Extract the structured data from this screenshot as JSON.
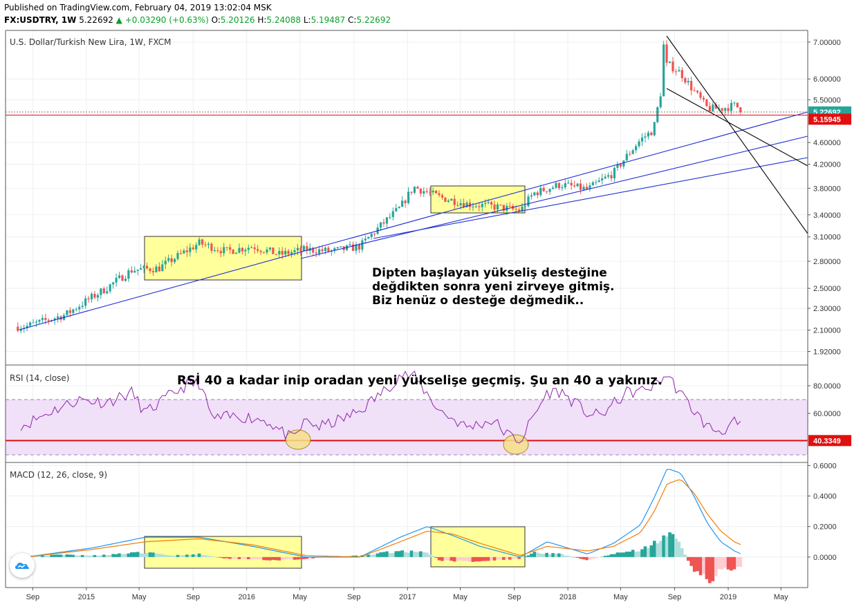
{
  "header": {
    "published": "Published on TradingView.com, February 04, 2019 13:02:04 MSK",
    "symbol": "FX:USDTRY, 1W",
    "last": "5.22692",
    "change": "▲ +0.03290 (+0.63%)",
    "o_label": "O:",
    "o": "5.20126",
    "h_label": "H:",
    "h": "5.24088",
    "l_label": "L:",
    "l": "5.19487",
    "c_label": "C:",
    "c": "5.22692"
  },
  "panes": {
    "price_title": "U.S. Dollar/Turkish New Lira, 1W, FXCM",
    "rsi_title": "RSI (14, close)",
    "macd_title": "MACD (12, 26, close, 9)"
  },
  "annotations": {
    "price_line1": "Dipten başlayan yükseliş desteğine",
    "price_line2": "değdikten sonra yeni zirveye gitmiş.",
    "price_line3": "Biz henüz o desteğe değmedik..",
    "rsi_note": "RSİ 40 a kadar inip oradan yeni yükselişe geçmiş. Şu an 40 a yakınız."
  },
  "colors": {
    "up": "#26a69a",
    "down": "#ef5350",
    "trendline": "#1f2fd6",
    "rsi_line": "#8e24aa",
    "rsi_band": "#f0e0f8",
    "rsi_level": "#e01010",
    "macd_line": "#2196f3",
    "signal_line": "#f57c00",
    "hist_up_strong": "#26a69a",
    "hist_up_weak": "#b2dfdb",
    "hist_down_strong": "#ef5350",
    "hist_down_weak": "#ffcdd2",
    "highlight_box": "#ffff9c",
    "last_price_tag": "#26a69a",
    "level_tag": "#e01010"
  },
  "chart_data": [
    {
      "type": "candlestick",
      "title": "U.S. Dollar/Turkish New Lira, 1W, FXCM",
      "x_ticks": [
        "Sep",
        "2015",
        "May",
        "Sep",
        "2016",
        "May",
        "Sep",
        "2017",
        "May",
        "Sep",
        "2018",
        "May",
        "Sep",
        "2019",
        "May"
      ],
      "y_ticks": [
        7.0,
        6.0,
        5.5,
        4.6,
        4.2,
        3.8,
        3.4,
        3.1,
        2.8,
        2.5,
        2.3,
        2.1,
        1.92
      ],
      "y_tick_labels": [
        "7.00000",
        "6.00000",
        "5.50000",
        "4.60000",
        "4.20000",
        "3.80000",
        "3.40000",
        "3.10000",
        "2.80000",
        "2.50000",
        "2.30000",
        "2.10000",
        "1.92000"
      ],
      "ylim": [
        1.82,
        7.35
      ],
      "scale": "log",
      "last_price_label": "5.22692",
      "horizontal_level_label": "5.15945",
      "trend": [
        [
          "2014-08",
          2.13
        ],
        [
          "2014-11",
          2.24
        ],
        [
          "2015-02",
          2.5
        ],
        [
          "2015-04",
          2.7
        ],
        [
          "2015-06",
          2.72
        ],
        [
          "2015-09",
          3.02
        ],
        [
          "2015-11",
          2.92
        ],
        [
          "2016-01",
          2.98
        ],
        [
          "2016-03",
          2.88
        ],
        [
          "2016-05",
          2.94
        ],
        [
          "2016-07",
          2.92
        ],
        [
          "2016-09",
          2.98
        ],
        [
          "2016-12",
          3.5
        ],
        [
          "2017-01",
          3.82
        ],
        [
          "2017-03",
          3.66
        ],
        [
          "2017-05",
          3.56
        ],
        [
          "2017-07",
          3.52
        ],
        [
          "2017-09",
          3.46
        ],
        [
          "2017-10",
          3.72
        ],
        [
          "2017-12",
          3.86
        ],
        [
          "2018-02",
          3.78
        ],
        [
          "2018-04",
          4.05
        ],
        [
          "2018-06",
          4.65
        ],
        [
          "2018-07",
          4.85
        ],
        [
          "2018-08",
          6.4
        ],
        [
          "2018-09",
          6.15
        ],
        [
          "2018-10",
          5.7
        ],
        [
          "2018-11",
          5.3
        ],
        [
          "2018-12",
          5.3
        ],
        [
          "2019-01",
          5.37
        ],
        [
          "2019-02",
          5.22
        ]
      ]
    },
    {
      "type": "line",
      "title": "RSI (14, close)",
      "y_ticks": [
        80,
        60
      ],
      "y_tick_labels": [
        "80.0000",
        "60.0000"
      ],
      "ylim": [
        25,
        95
      ],
      "band": [
        30,
        70
      ],
      "level": 40.3349,
      "level_label": "40.3349",
      "values": [
        [
          "2014-08",
          52
        ],
        [
          "2014-10",
          62
        ],
        [
          "2014-12",
          70
        ],
        [
          "2015-02",
          68
        ],
        [
          "2015-04",
          75
        ],
        [
          "2015-05",
          60
        ],
        [
          "2015-07",
          74
        ],
        [
          "2015-08",
          80
        ],
        [
          "2015-09",
          82
        ],
        [
          "2015-10",
          56
        ],
        [
          "2015-12",
          58
        ],
        [
          "2016-02",
          55
        ],
        [
          "2016-03",
          48
        ],
        [
          "2016-04",
          41
        ],
        [
          "2016-05",
          55
        ],
        [
          "2016-06",
          50
        ],
        [
          "2016-08",
          57
        ],
        [
          "2016-09",
          62
        ],
        [
          "2016-11",
          78
        ],
        [
          "2016-12",
          88
        ],
        [
          "2017-01",
          87
        ],
        [
          "2017-03",
          62
        ],
        [
          "2017-05",
          50
        ],
        [
          "2017-07",
          55
        ],
        [
          "2017-08",
          45
        ],
        [
          "2017-09",
          40
        ],
        [
          "2017-10",
          58
        ],
        [
          "2017-11",
          75
        ],
        [
          "2017-12",
          76
        ],
        [
          "2018-02",
          60
        ],
        [
          "2018-03",
          58
        ],
        [
          "2018-05",
          75
        ],
        [
          "2018-06",
          76
        ],
        [
          "2018-07",
          80
        ],
        [
          "2018-08",
          88
        ],
        [
          "2018-09",
          74
        ],
        [
          "2018-10",
          62
        ],
        [
          "2018-11",
          50
        ],
        [
          "2018-12",
          47
        ],
        [
          "2019-01",
          53
        ],
        [
          "2019-02",
          47
        ]
      ]
    },
    {
      "type": "line",
      "title": "MACD (12, 26, close, 9)",
      "y_ticks": [
        0.6,
        0.4,
        0.2,
        0.0
      ],
      "y_tick_labels": [
        "0.6000",
        "0.4000",
        "0.2000",
        "0.0000"
      ],
      "ylim": [
        -0.2,
        0.62
      ],
      "series": [
        {
          "key": "macd",
          "values": [
            [
              "2014-08",
              0.0
            ],
            [
              "2015-01",
              0.06
            ],
            [
              "2015-05",
              0.13
            ],
            [
              "2015-09",
              0.13
            ],
            [
              "2016-01",
              0.07
            ],
            [
              "2016-05",
              0.0
            ],
            [
              "2016-09",
              0.0
            ],
            [
              "2016-12",
              0.13
            ],
            [
              "2017-02",
              0.2
            ],
            [
              "2017-04",
              0.14
            ],
            [
              "2017-06",
              0.07
            ],
            [
              "2017-09",
              0.0
            ],
            [
              "2017-11",
              0.1
            ],
            [
              "2018-02",
              0.02
            ],
            [
              "2018-04",
              0.09
            ],
            [
              "2018-06",
              0.21
            ],
            [
              "2018-07",
              0.38
            ],
            [
              "2018-08",
              0.58
            ],
            [
              "2018-09",
              0.55
            ],
            [
              "2018-10",
              0.4
            ],
            [
              "2018-11",
              0.22
            ],
            [
              "2018-12",
              0.1
            ],
            [
              "2019-01",
              0.04
            ],
            [
              "2019-02",
              0.0
            ]
          ]
        },
        {
          "key": "signal",
          "values": [
            [
              "2014-08",
              0.0
            ],
            [
              "2015-01",
              0.05
            ],
            [
              "2015-05",
              0.1
            ],
            [
              "2015-09",
              0.12
            ],
            [
              "2016-01",
              0.08
            ],
            [
              "2016-05",
              0.01
            ],
            [
              "2016-09",
              0.0
            ],
            [
              "2016-12",
              0.1
            ],
            [
              "2017-02",
              0.17
            ],
            [
              "2017-04",
              0.15
            ],
            [
              "2017-06",
              0.09
            ],
            [
              "2017-09",
              0.01
            ],
            [
              "2017-11",
              0.07
            ],
            [
              "2018-02",
              0.04
            ],
            [
              "2018-04",
              0.07
            ],
            [
              "2018-06",
              0.16
            ],
            [
              "2018-07",
              0.29
            ],
            [
              "2018-08",
              0.48
            ],
            [
              "2018-09",
              0.51
            ],
            [
              "2018-10",
              0.42
            ],
            [
              "2018-11",
              0.28
            ],
            [
              "2018-12",
              0.17
            ],
            [
              "2019-01",
              0.1
            ],
            [
              "2019-02",
              0.06
            ]
          ]
        }
      ],
      "histogram": [
        [
          "2014-09",
          0.01
        ],
        [
          "2014-11",
          0.015
        ],
        [
          "2015-01",
          0.01
        ],
        [
          "2015-03",
          0.02
        ],
        [
          "2015-05",
          0.03
        ],
        [
          "2015-07",
          0.01
        ],
        [
          "2015-09",
          0.02
        ],
        [
          "2015-11",
          -0.01
        ],
        [
          "2016-01",
          -0.015
        ],
        [
          "2016-03",
          -0.02
        ],
        [
          "2016-05",
          -0.01
        ],
        [
          "2016-07",
          0.0
        ],
        [
          "2016-09",
          0.01
        ],
        [
          "2016-11",
          0.03
        ],
        [
          "2016-12",
          0.04
        ],
        [
          "2017-02",
          0.03
        ],
        [
          "2017-03",
          -0.02
        ],
        [
          "2017-05",
          -0.03
        ],
        [
          "2017-07",
          -0.02
        ],
        [
          "2017-09",
          -0.01
        ],
        [
          "2017-10",
          0.03
        ],
        [
          "2017-12",
          0.02
        ],
        [
          "2018-02",
          -0.02
        ],
        [
          "2018-04",
          0.02
        ],
        [
          "2018-06",
          0.05
        ],
        [
          "2018-07",
          0.09
        ],
        [
          "2018-08",
          0.16
        ],
        [
          "2018-09",
          0.07
        ],
        [
          "2018-10",
          -0.09
        ],
        [
          "2018-11",
          -0.16
        ],
        [
          "2018-12",
          -0.08
        ],
        [
          "2019-01",
          -0.07
        ],
        [
          "2019-02",
          -0.06
        ]
      ]
    }
  ]
}
